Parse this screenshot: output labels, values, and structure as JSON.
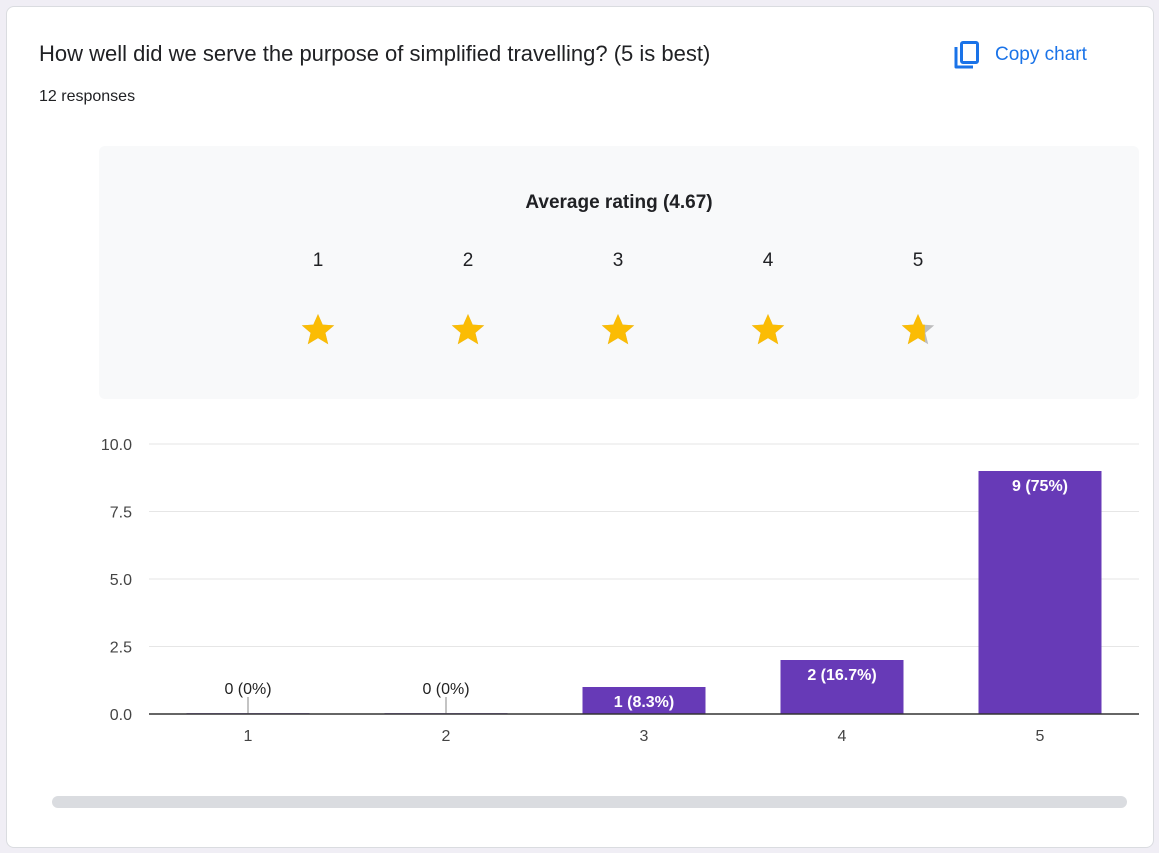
{
  "question": {
    "title": "How well did we serve the purpose of simplified travelling?  (5 is best)",
    "responses": "12 responses"
  },
  "toolbar": {
    "copy_chart_label": "Copy chart",
    "icon": "copy-icon"
  },
  "rating": {
    "average_label": "Average rating (4.67)",
    "average": 4.67,
    "scale": [
      "1",
      "2",
      "3",
      "4",
      "5"
    ],
    "star_fill": [
      1,
      1,
      1,
      1,
      0.67
    ],
    "star_color": "#fbbc04",
    "star_empty_color": "#bdbdbd"
  },
  "chart_data": {
    "type": "bar",
    "categories": [
      "1",
      "2",
      "3",
      "4",
      "5"
    ],
    "values": [
      0,
      0,
      1,
      2,
      9
    ],
    "data_labels": [
      "0 (0%)",
      "0 (0%)",
      "1 (8.3%)",
      "2 (16.7%)",
      "9 (75%)"
    ],
    "ylim": [
      0,
      10
    ],
    "yticks": [
      0,
      2.5,
      5,
      7.5,
      10
    ],
    "ytick_labels": [
      "0.0",
      "2.5",
      "5.0",
      "7.5",
      "10.0"
    ],
    "grid": true,
    "bar_color": "#673ab7"
  }
}
